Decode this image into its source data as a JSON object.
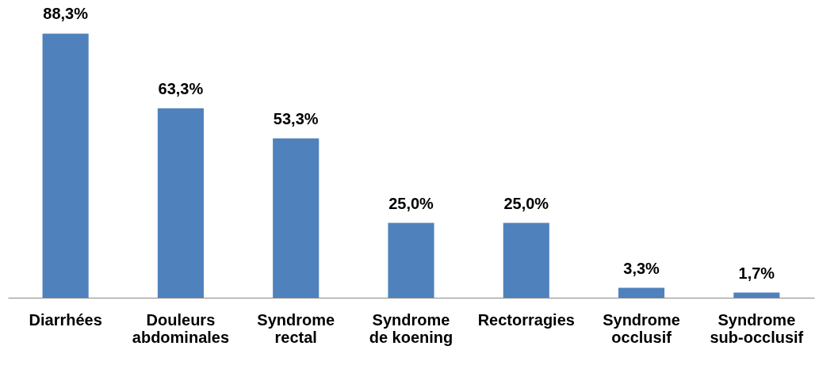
{
  "chart_data": {
    "type": "bar",
    "categories": [
      "Diarrhées",
      "Douleurs abdominales",
      "Syndrome rectal",
      "Syndrome de koening",
      "Rectorragies",
      "Syndrome occlusif",
      "Syndrome sub-occlusif"
    ],
    "values": [
      88.3,
      63.3,
      53.3,
      25.0,
      25.0,
      3.3,
      1.7
    ],
    "value_labels": [
      "88,3%",
      "63,3%",
      "53,3%",
      "25,0%",
      "25,0%",
      "3,3%",
      "1,7%"
    ],
    "color": "#4f81bd",
    "grid": false
  }
}
